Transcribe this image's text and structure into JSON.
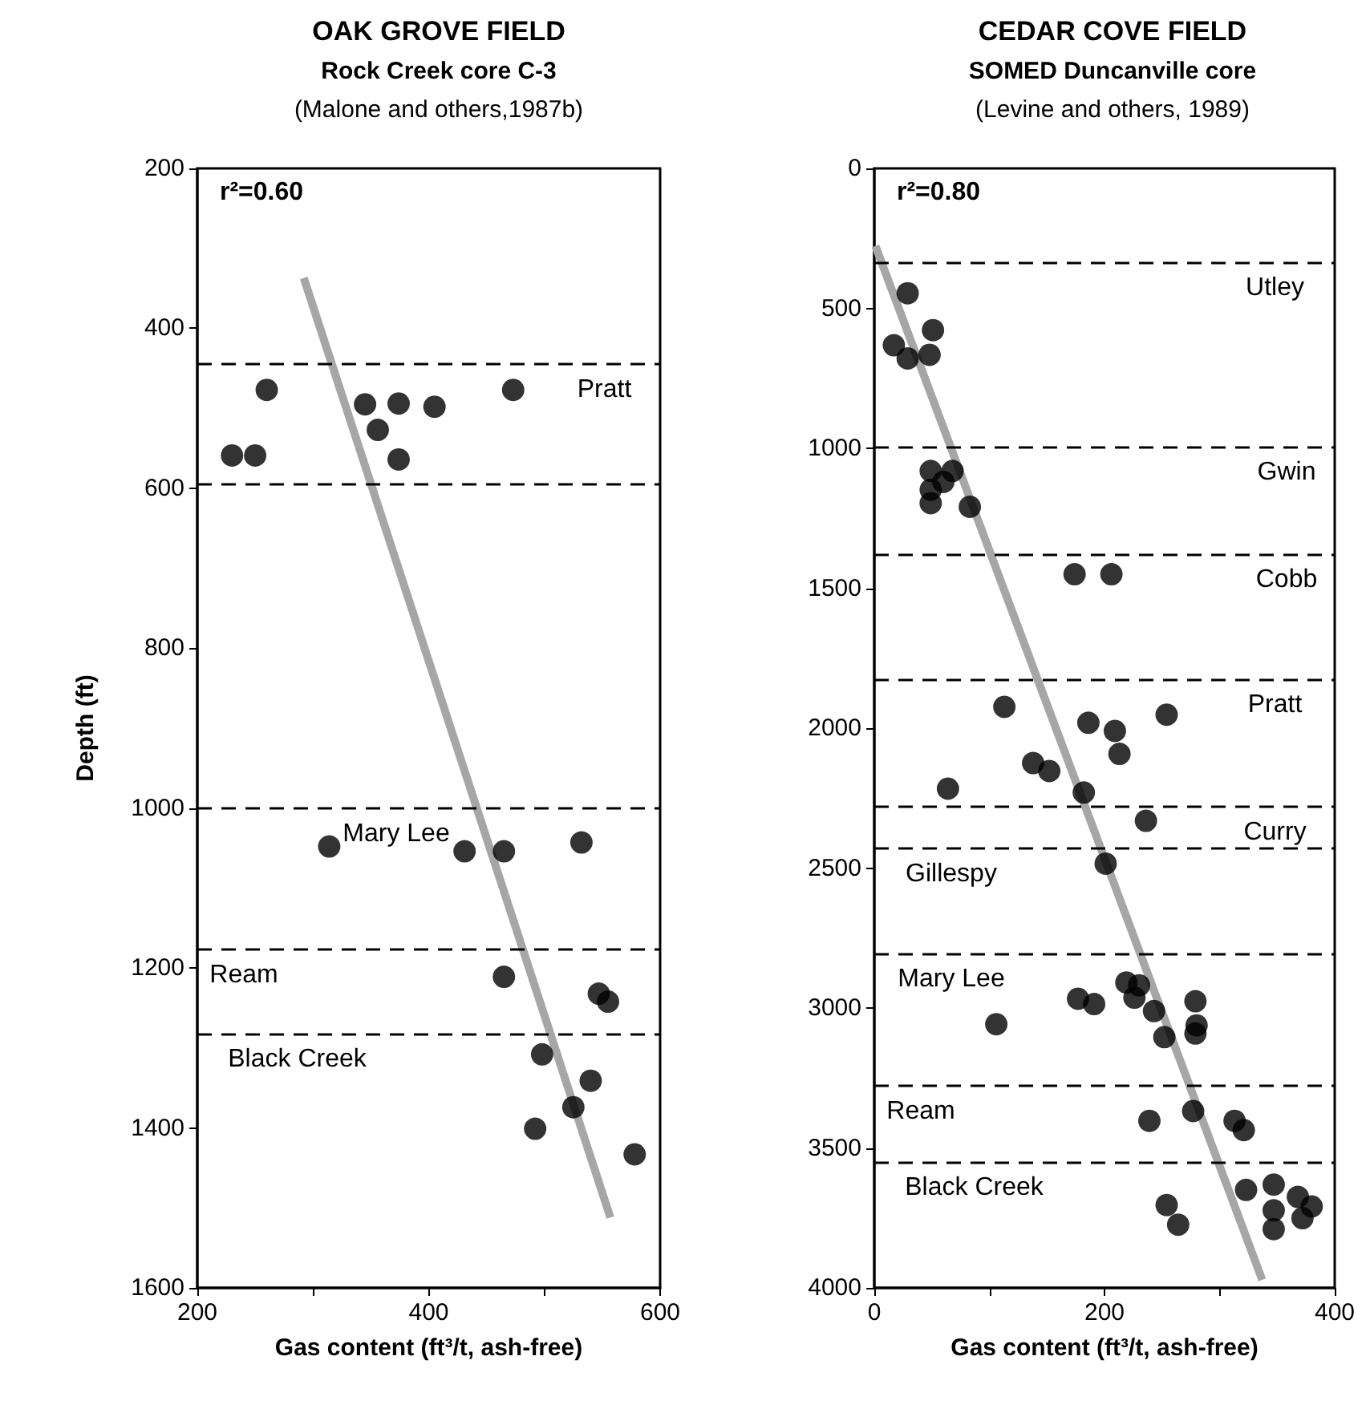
{
  "chart_data": [
    {
      "type": "scatter",
      "title": "OAK GROVE FIELD",
      "subtitle": "Rock Creek core C-3\n(Malone and others,1987b)",
      "xlabel": "Gas content (ft³/t, ash-free)",
      "ylabel": "Depth (ft)",
      "xlim": [
        200,
        600
      ],
      "xticks": [
        200,
        {
          "value": 300,
          "label": null
        },
        400,
        {
          "value": 500,
          "label": null
        },
        600
      ],
      "ylim": [
        1600,
        200
      ],
      "yticks": [
        200,
        400,
        600,
        800,
        1000,
        1200,
        1400,
        1600
      ],
      "grid": false,
      "series": [
        {
          "color": "#000000",
          "marker": "circle",
          "x": [
            230,
            250,
            260,
            345,
            374,
            405,
            356,
            374,
            473,
            314,
            431,
            465,
            532,
            465,
            547,
            555,
            498,
            540,
            525,
            492,
            578
          ],
          "values": [
            559,
            559,
            477,
            495,
            494,
            498,
            527,
            564,
            477,
            1048,
            1054,
            1054,
            1043,
            1211,
            1232,
            1242,
            1308,
            1341,
            1374,
            1401,
            1433
          ]
        },
        {
          "type": "line",
          "color": "#a6a6a6",
          "marker": "none",
          "x": [
            292,
            557
          ],
          "values": [
            337,
            1512
          ]
        }
      ],
      "ref_lines": [
        {
          "axis": "y",
          "value": 445,
          "label": "Pratt",
          "color": "#000000",
          "line_style": "dashed"
        },
        {
          "axis": "y",
          "value": 595,
          "color": "#000000",
          "line_style": "dashed"
        },
        {
          "axis": "y",
          "value": 1000,
          "label": "Mary Lee",
          "color": "#000000",
          "line_style": "dashed"
        },
        {
          "axis": "y",
          "value": 1177,
          "label": "Ream",
          "color": "#000000",
          "line_style": "dashed"
        },
        {
          "axis": "y",
          "value": 1282,
          "label": "Black Creek",
          "color": "#000000",
          "line_style": "dashed"
        }
      ],
      "annotations": [
        "r²=0.60"
      ]
    },
    {
      "type": "scatter",
      "title": "CEDAR COVE FIELD",
      "subtitle": "SOMED Duncanville core\n(Levine and others, 1989)",
      "xlabel": "Gas content (ft³/t, ash-free)",
      "xlim": [
        0,
        400
      ],
      "xticks": [
        0,
        {
          "value": 100,
          "label": null
        },
        200,
        {
          "value": 300,
          "label": null
        },
        400
      ],
      "ylim": [
        4000,
        0
      ],
      "yticks": [
        0,
        500,
        1000,
        1500,
        2000,
        2500,
        3000,
        3500,
        4000
      ],
      "grid": false,
      "series": [
        {
          "color": "#000000",
          "marker": "circle",
          "x": [
            29,
            17,
            29,
            51,
            48,
            49,
            68,
            49,
            49,
            83,
            60,
            174,
            206,
            113,
            186,
            209,
            213,
            254,
            138,
            152,
            64,
            182,
            236,
            201,
            177,
            191,
            219,
            230,
            226,
            243,
            252,
            279,
            280,
            279,
            106,
            239,
            277,
            313,
            321,
            323,
            347,
            347,
            347,
            368,
            372,
            380,
            254,
            264
          ],
          "values": [
            446,
            632,
            679,
            578,
            666,
            1081,
            1081,
            1148,
            1196,
            1209,
            1120,
            1450,
            1450,
            1924,
            1981,
            2010,
            2092,
            1952,
            2125,
            2153,
            2216,
            2230,
            2331,
            2484,
            2967,
            2986,
            2909,
            2919,
            2963,
            3011,
            3104,
            2976,
            3062,
            3091,
            3058,
            3403,
            3368,
            3403,
            3436,
            3650,
            3631,
            3723,
            3790,
            3675,
            3751,
            3709,
            3704,
            3774
          ]
        },
        {
          "type": "line",
          "color": "#a6a6a6",
          "marker": "none",
          "x": [
            1,
            337
          ],
          "values": [
            277,
            3971
          ]
        }
      ],
      "ref_lines": [
        {
          "axis": "y",
          "value": 335,
          "label": "Utley",
          "color": "#000000",
          "line_style": "dashed"
        },
        {
          "axis": "y",
          "value": 995,
          "label": "Gwin",
          "color": "#000000",
          "line_style": "dashed"
        },
        {
          "axis": "y",
          "value": 1378,
          "label": "Cobb",
          "color": "#000000",
          "line_style": "dashed"
        },
        {
          "axis": "y",
          "value": 1826,
          "label": "Pratt",
          "color": "#000000",
          "line_style": "dashed"
        },
        {
          "axis": "y",
          "value": 2281,
          "label": "Curry",
          "color": "#000000",
          "line_style": "dashed"
        },
        {
          "axis": "y",
          "value": 2431,
          "label": "Gillespy",
          "color": "#000000",
          "line_style": "dashed"
        },
        {
          "axis": "y",
          "value": 2804,
          "label": "Mary Lee",
          "color": "#000000",
          "line_style": "dashed"
        },
        {
          "axis": "y",
          "value": 3279,
          "label": "Ream",
          "color": "#000000",
          "line_style": "dashed"
        },
        {
          "axis": "y",
          "value": 3550,
          "label": "Black Creek",
          "color": "#000000",
          "line_style": "dashed"
        }
      ],
      "annotations": [
        "r²=0.80"
      ]
    }
  ]
}
